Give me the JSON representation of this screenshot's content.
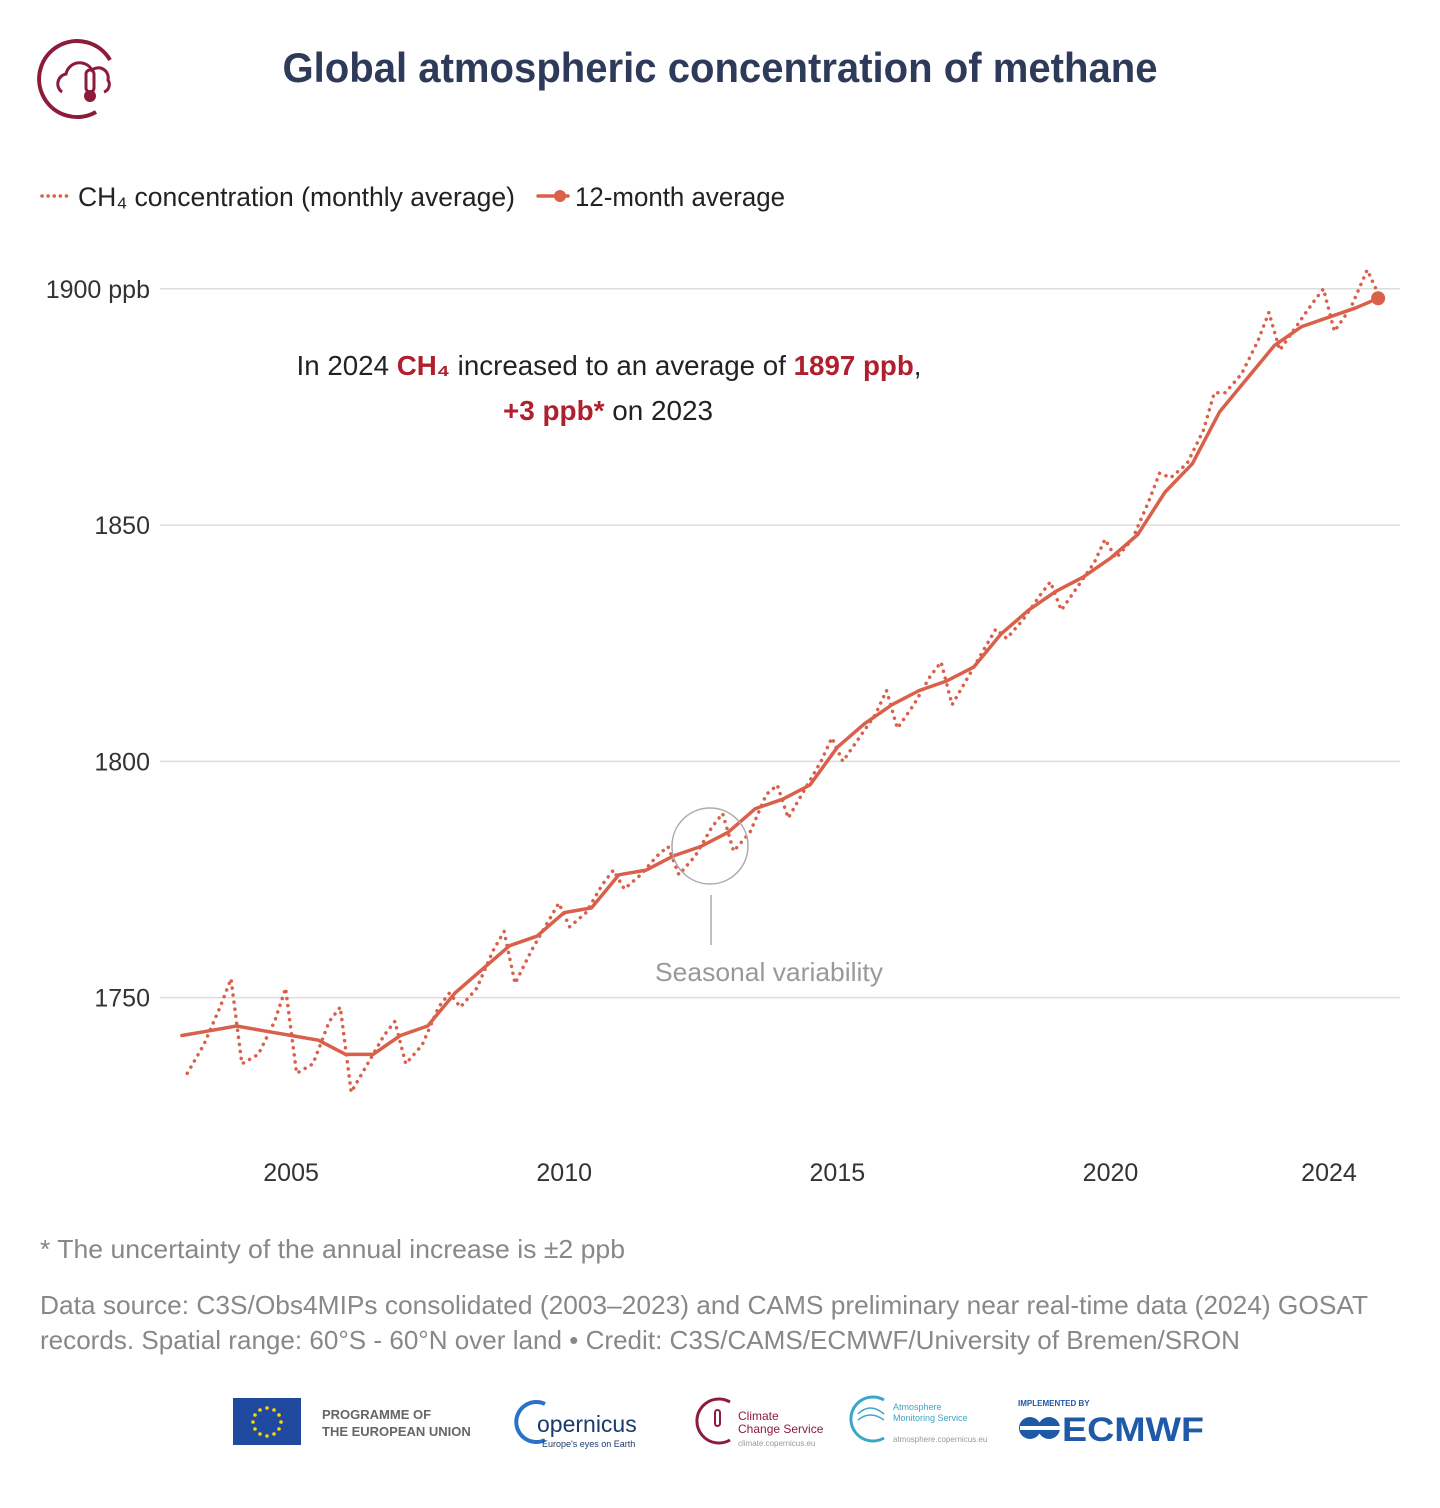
{
  "chart_data": {
    "type": "line",
    "title": "Global atmospheric concentration of methane",
    "series": [
      {
        "name": "CH₄ concentration (monthly average)",
        "color": "#d9604a",
        "style": "dotted",
        "x": [
          2003.1,
          2003.4,
          2003.7,
          2003.9,
          2004.1,
          2004.4,
          2004.7,
          2004.9,
          2005.1,
          2005.4,
          2005.7,
          2005.9,
          2006.1,
          2006.4,
          2006.7,
          2006.9,
          2007.1,
          2007.4,
          2007.7,
          2007.9,
          2008.1,
          2008.4,
          2008.7,
          2008.9,
          2009.1,
          2009.4,
          2009.7,
          2009.9,
          2010.1,
          2010.4,
          2010.7,
          2010.9,
          2011.1,
          2011.4,
          2011.7,
          2011.9,
          2012.1,
          2012.4,
          2012.7,
          2012.9,
          2013.1,
          2013.4,
          2013.7,
          2013.9,
          2014.1,
          2014.4,
          2014.7,
          2014.9,
          2015.1,
          2015.4,
          2015.7,
          2015.9,
          2016.1,
          2016.4,
          2016.7,
          2016.9,
          2017.1,
          2017.4,
          2017.7,
          2017.9,
          2018.1,
          2018.4,
          2018.7,
          2018.9,
          2019.1,
          2019.4,
          2019.7,
          2019.9,
          2020.1,
          2020.4,
          2020.7,
          2020.9,
          2021.1,
          2021.4,
          2021.7,
          2021.9,
          2022.1,
          2022.4,
          2022.7,
          2022.9,
          2023.1,
          2023.4,
          2023.7,
          2023.9,
          2024.1,
          2024.4,
          2024.7,
          2024.9
        ],
        "values": [
          1734,
          1740,
          1748,
          1754,
          1736,
          1738,
          1745,
          1752,
          1734,
          1736,
          1745,
          1748,
          1730,
          1736,
          1742,
          1745,
          1736,
          1740,
          1748,
          1751,
          1748,
          1752,
          1760,
          1764,
          1753,
          1760,
          1766,
          1770,
          1765,
          1768,
          1774,
          1777,
          1773,
          1776,
          1780,
          1782,
          1776,
          1780,
          1786,
          1789,
          1781,
          1785,
          1793,
          1795,
          1788,
          1794,
          1800,
          1805,
          1800,
          1805,
          1810,
          1815,
          1807,
          1812,
          1818,
          1821,
          1812,
          1818,
          1824,
          1828,
          1826,
          1830,
          1835,
          1838,
          1832,
          1837,
          1842,
          1847,
          1843,
          1847,
          1855,
          1861,
          1860,
          1863,
          1870,
          1878,
          1878,
          1882,
          1889,
          1895,
          1887,
          1892,
          1897,
          1900,
          1891,
          1896,
          1904,
          1899
        ]
      },
      {
        "name": "12-month average",
        "color": "#d9604a",
        "style": "solid",
        "end_marker": true,
        "x": [
          2003,
          2003.5,
          2004,
          2004.5,
          2005,
          2005.5,
          2006,
          2006.5,
          2007,
          2007.5,
          2008,
          2008.5,
          2009,
          2009.5,
          2010,
          2010.5,
          2011,
          2011.5,
          2012,
          2012.5,
          2013,
          2013.5,
          2014,
          2014.5,
          2015,
          2015.5,
          2016,
          2016.5,
          2017,
          2017.5,
          2018,
          2018.5,
          2019,
          2019.5,
          2020,
          2020.5,
          2021,
          2021.5,
          2022,
          2022.5,
          2023,
          2023.5,
          2024,
          2024.5,
          2024.9
        ],
        "values": [
          1742,
          1743,
          1744,
          1743,
          1742,
          1741,
          1738,
          1738,
          1742,
          1744,
          1751,
          1756,
          1761,
          1763,
          1768,
          1769,
          1776,
          1777,
          1780,
          1782,
          1785,
          1790,
          1792,
          1795,
          1803,
          1808,
          1812,
          1815,
          1817,
          1820,
          1827,
          1832,
          1836,
          1839,
          1843,
          1848,
          1857,
          1863,
          1874,
          1881,
          1888,
          1892,
          1894,
          1896,
          1898
        ]
      }
    ],
    "xlim": [
      2002.6,
      2025.3
    ],
    "xticks": [
      2005,
      2010,
      2015,
      2020,
      2024
    ],
    "ylim": [
      1722,
      1908
    ],
    "yticks": [
      {
        "value": 1900,
        "label": "1900 ppb"
      },
      1850,
      1800,
      1750
    ],
    "grid": "y",
    "emphasis_color": "#b01f2e",
    "annotations": [
      {
        "lines": [
          [
            {
              "text": "In 2024 "
            },
            {
              "text": "CH₄",
              "emphasis": true
            },
            {
              "text": " increased to an average of "
            },
            {
              "text": "1897 ppb",
              "emphasis": true
            },
            {
              "text": ","
            }
          ],
          [
            {
              "text": "+3 ppb*",
              "emphasis": true
            },
            {
              "text": " on 2023"
            }
          ]
        ]
      },
      {
        "text": "Seasonal variability"
      }
    ]
  },
  "footnote": "* The uncertainty of the annual increase is ±2 ppb",
  "source": [
    "Data source: C3S/Obs4MIPs consolidated (2003–2023) and CAMS preliminary near real-time data (2024) GOSAT",
    "records. Spatial range: 60°S - 60°N over land • Credit: C3S/CAMS/ECMWF/University of Bremen/SRON"
  ],
  "logos": {
    "eu": [
      "PROGRAMME OF",
      "THE EUROPEAN UNION"
    ],
    "copernicus": [
      "opernicus",
      "Europe's eyes on Earth"
    ],
    "climate": [
      "Climate",
      "Change Service",
      "climate.copernicus.eu"
    ],
    "atmosphere": [
      "Atmosphere",
      "Monitoring Service",
      "atmosphere.copernicus.eu"
    ],
    "ecmwf": [
      "IMPLEMENTED BY",
      "ECMWF"
    ]
  }
}
